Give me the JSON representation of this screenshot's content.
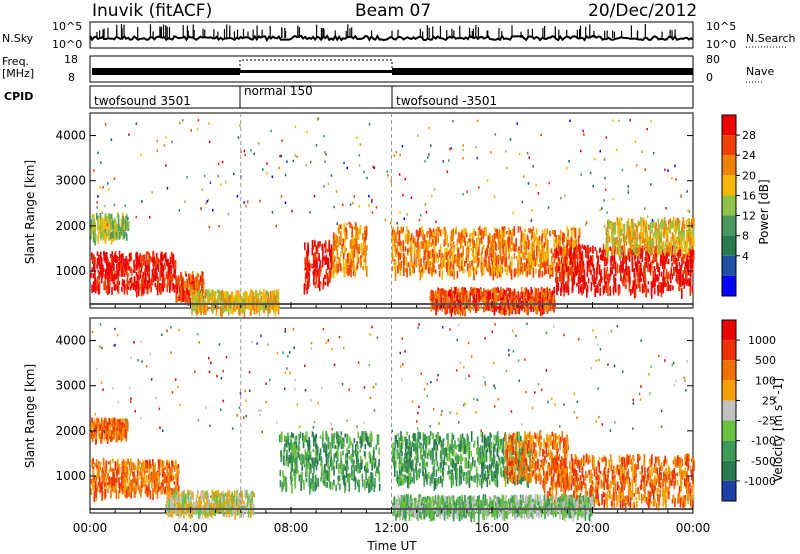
{
  "header": {
    "station": "Inuvik (fitACF)",
    "beam": "Beam 07",
    "date": "20/Dec/2012"
  },
  "nsky_panel": {
    "left_label": "N.Sky",
    "right_label": "N.Search",
    "ticks_left": [
      "10^5",
      "10^0"
    ],
    "ticks_right": [
      "10^5",
      "10^0"
    ]
  },
  "freq_panel": {
    "left_label_1": "Freq.",
    "left_label_2": "[MHz]",
    "right_label": "Nave",
    "ticks_left": [
      "18",
      "8"
    ],
    "ticks_right": [
      "80",
      "0"
    ]
  },
  "cpid_panel": {
    "label": "CPID",
    "segments": [
      {
        "name": "twofsound 3501",
        "start_h": 0,
        "end_h": 6
      },
      {
        "name": "normal 150",
        "start_h": 6,
        "end_h": 12
      },
      {
        "name": "twofsound -3501",
        "start_h": 12,
        "end_h": 24
      }
    ]
  },
  "chart_data": [
    {
      "type": "heatmap",
      "quantity": "Power",
      "ylabel": "Slant Range [km]",
      "ylim": [
        180,
        4500
      ],
      "yticks": [
        1000,
        2000,
        3000,
        4000
      ],
      "colorbar_label": "Power [dB]",
      "colorbar_ticks": [
        "28",
        "24",
        "20",
        "16",
        "12",
        "8",
        "4"
      ],
      "colorbar_colors": [
        "#0000ff",
        "#1e4fa0",
        "#2a7a50",
        "#4a9a60",
        "#8fc04a",
        "#f5b800",
        "#f08000",
        "#f04000",
        "#ee0000"
      ],
      "scatter_blobs": [
        {
          "t0": 0.0,
          "t1": 3.4,
          "r0": 650,
          "r1": 1450,
          "level": 8
        },
        {
          "t0": 3.4,
          "t1": 4.5,
          "r0": 400,
          "r1": 1000,
          "level": 7
        },
        {
          "t0": 4.0,
          "t1": 7.5,
          "r0": 200,
          "r1": 600,
          "level": 5
        },
        {
          "t0": 8.5,
          "t1": 9.6,
          "r0": 700,
          "r1": 1700,
          "level": 8
        },
        {
          "t0": 9.6,
          "t1": 11.0,
          "r0": 1000,
          "r1": 2100,
          "level": 6
        },
        {
          "t0": 12.0,
          "t1": 19.5,
          "r0": 1000,
          "r1": 2000,
          "level": 6
        },
        {
          "t0": 13.5,
          "t1": 18.5,
          "r0": 200,
          "r1": 650,
          "level": 7
        },
        {
          "t0": 18.5,
          "t1": 24.0,
          "r0": 600,
          "r1": 1600,
          "level": 8
        },
        {
          "t0": 0.0,
          "t1": 1.5,
          "r0": 1800,
          "r1": 2300,
          "level": 4
        },
        {
          "t0": 20.5,
          "t1": 24.0,
          "r0": 1500,
          "r1": 2200,
          "level": 5
        }
      ]
    },
    {
      "type": "heatmap",
      "quantity": "Velocity",
      "xlabel": "Time UT",
      "ylabel": "Slant Range [km]",
      "xlim": [
        0,
        24
      ],
      "xticks": [
        "00:00",
        "04:00",
        "08:00",
        "12:00",
        "16:00",
        "20:00",
        "00:00"
      ],
      "ylim": [
        180,
        4500
      ],
      "yticks": [
        1000,
        2000,
        3000,
        4000
      ],
      "colorbar_label": "Velocity [m s^-1]",
      "colorbar_ticks": [
        "1000",
        "500",
        "100",
        "25",
        "-25",
        "-100",
        "-500",
        "-1000"
      ],
      "colorbar_colors": [
        "#1e3fa8",
        "#2a7a50",
        "#3d9a55",
        "#6ac040",
        "#c0c0c0",
        "#f5a000",
        "#f07000",
        "#f03000",
        "#ee0000"
      ],
      "scatter_blobs": [
        {
          "t0": 0.0,
          "t1": 3.5,
          "r0": 650,
          "r1": 1400,
          "level": 6
        },
        {
          "t0": 3.0,
          "t1": 6.5,
          "r0": 250,
          "r1": 700,
          "level": 4
        },
        {
          "t0": 7.5,
          "t1": 11.5,
          "r0": 800,
          "r1": 2000,
          "level": 2
        },
        {
          "t0": 12.0,
          "t1": 17.5,
          "r0": 900,
          "r1": 2000,
          "level": 2
        },
        {
          "t0": 16.5,
          "t1": 19.0,
          "r0": 1000,
          "r1": 2000,
          "level": 6
        },
        {
          "t0": 18.0,
          "t1": 24.0,
          "r0": 400,
          "r1": 1500,
          "level": 6
        },
        {
          "t0": 12.0,
          "t1": 20.0,
          "r0": 200,
          "r1": 600,
          "level": 3
        },
        {
          "t0": 0.0,
          "t1": 1.5,
          "r0": 1900,
          "r1": 2300,
          "level": 6
        }
      ]
    }
  ]
}
